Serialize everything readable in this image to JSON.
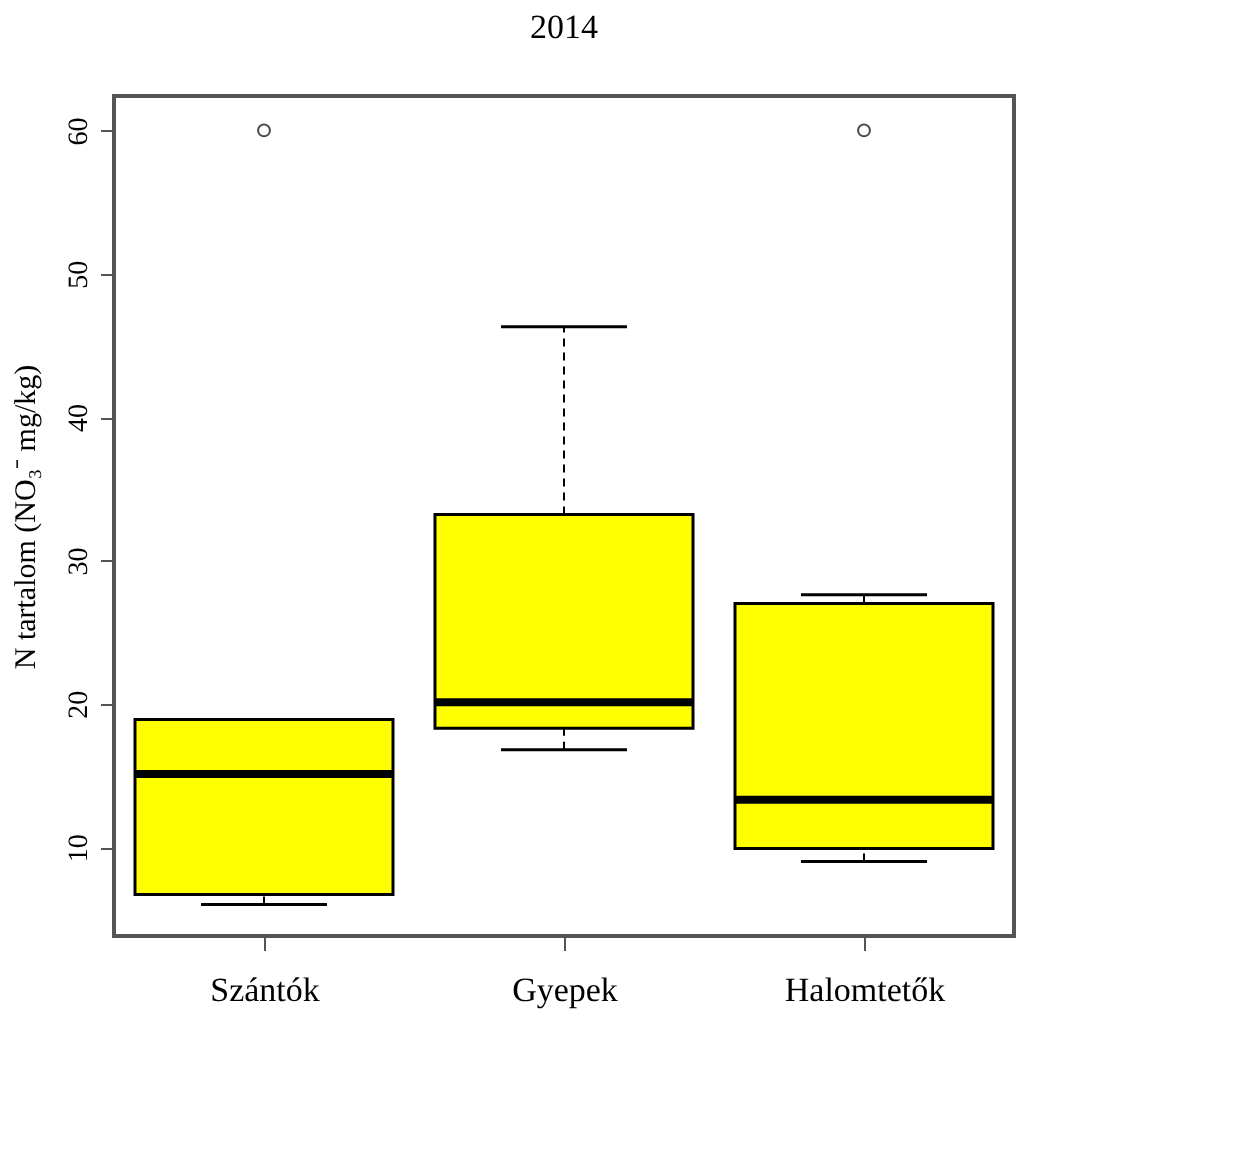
{
  "chart_data": {
    "type": "box",
    "title": "2014",
    "ylabel": "N tartalom (NO₃⁻ mg/kg)",
    "categories": [
      "Szántók",
      "Gyepek",
      "Halomtetők"
    ],
    "color": "#ffff00",
    "line_style": "dashed",
    "marker": "circle",
    "boxes": [
      {
        "low": 6.0,
        "q1": 6.7,
        "median": 15.1,
        "q3": 18.9,
        "high": 18.9,
        "outliers": [
          60
        ]
      },
      {
        "low": 16.8,
        "q1": 18.3,
        "median": 20.1,
        "q3": 33.2,
        "high": 46.3
      },
      {
        "low": 9.0,
        "q1": 9.9,
        "median": 13.3,
        "q3": 27.0,
        "high": 27.6,
        "outliers": [
          60
        ]
      }
    ],
    "ylim": [
      3.8,
      62.4
    ],
    "yticks": [
      10,
      20,
      30,
      40,
      50,
      60
    ]
  }
}
